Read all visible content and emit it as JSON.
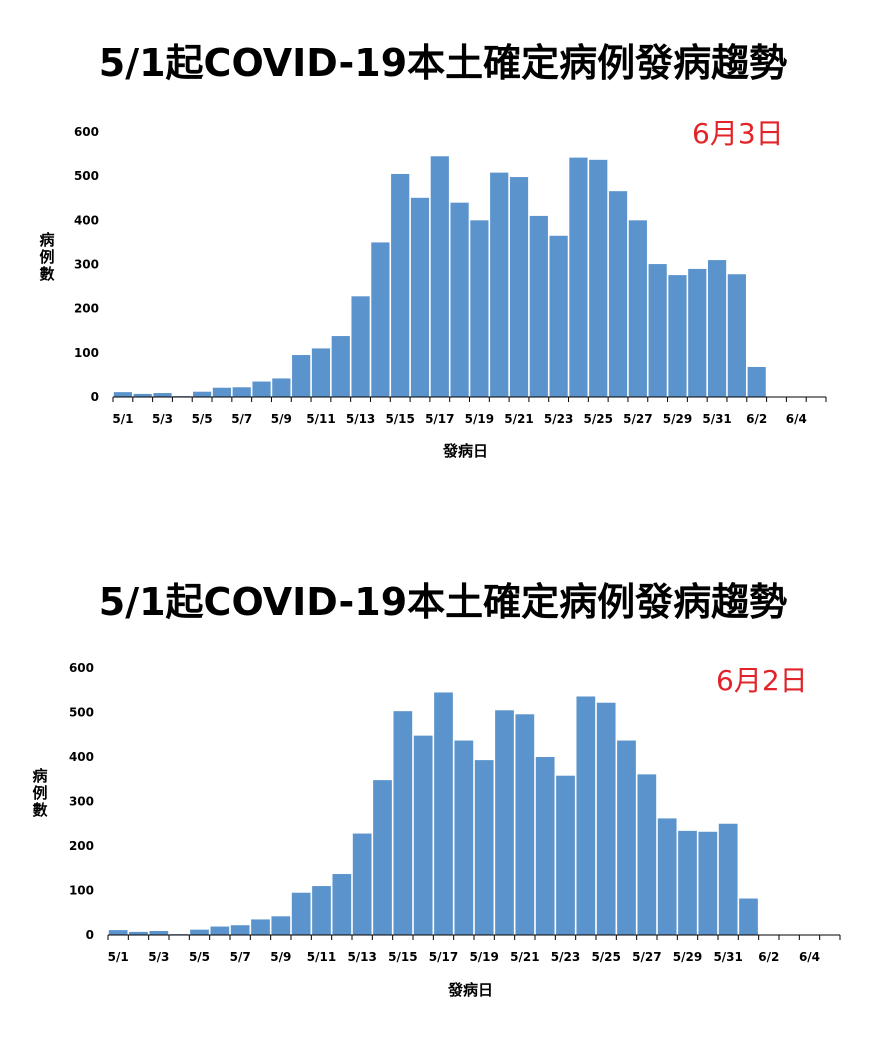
{
  "chart_data": [
    {
      "type": "bar",
      "title": "5/1起COVID-19本土確定病例發病趨勢",
      "date_label": "6月3日",
      "xlabel": "發病日",
      "ylabel": "病例數",
      "ylim": [
        0,
        600
      ],
      "yticks": [
        0,
        100,
        200,
        300,
        400,
        500,
        600
      ],
      "xtick_labels": [
        "5/1",
        "5/3",
        "5/5",
        "5/7",
        "5/9",
        "5/11",
        "5/13",
        "5/15",
        "5/17",
        "5/19",
        "5/21",
        "5/23",
        "5/25",
        "5/27",
        "5/29",
        "5/31",
        "6/2",
        "6/4"
      ],
      "categories": [
        "5/1",
        "5/2",
        "5/3",
        "5/4",
        "5/5",
        "5/6",
        "5/7",
        "5/8",
        "5/9",
        "5/10",
        "5/11",
        "5/12",
        "5/13",
        "5/14",
        "5/15",
        "5/16",
        "5/17",
        "5/18",
        "5/19",
        "5/20",
        "5/21",
        "5/22",
        "5/23",
        "5/24",
        "5/25",
        "5/26",
        "5/27",
        "5/28",
        "5/29",
        "5/30",
        "5/31",
        "6/1",
        "6/2",
        "6/3",
        "6/4",
        "6/5"
      ],
      "values": [
        11,
        7,
        9,
        2,
        12,
        21,
        22,
        35,
        42,
        95,
        110,
        138,
        228,
        350,
        505,
        451,
        545,
        440,
        400,
        508,
        498,
        410,
        365,
        542,
        537,
        466,
        400,
        301,
        276,
        290,
        310,
        278,
        68,
        0,
        0,
        0
      ],
      "bar_color": "#5b94cc",
      "grid": false
    },
    {
      "type": "bar",
      "title": "5/1起COVID-19本土確定病例發病趨勢",
      "date_label": "6月2日",
      "xlabel": "發病日",
      "ylabel": "病例數",
      "ylim": [
        0,
        600
      ],
      "yticks": [
        0,
        100,
        200,
        300,
        400,
        500,
        600
      ],
      "xtick_labels": [
        "5/1",
        "5/3",
        "5/5",
        "5/7",
        "5/9",
        "5/11",
        "5/13",
        "5/15",
        "5/17",
        "5/19",
        "5/21",
        "5/23",
        "5/25",
        "5/27",
        "5/29",
        "5/31",
        "6/2",
        "6/4"
      ],
      "categories": [
        "5/1",
        "5/2",
        "5/3",
        "5/4",
        "5/5",
        "5/6",
        "5/7",
        "5/8",
        "5/9",
        "5/10",
        "5/11",
        "5/12",
        "5/13",
        "5/14",
        "5/15",
        "5/16",
        "5/17",
        "5/18",
        "5/19",
        "5/20",
        "5/21",
        "5/22",
        "5/23",
        "5/24",
        "5/25",
        "5/26",
        "5/27",
        "5/28",
        "5/29",
        "5/30",
        "5/31",
        "6/1",
        "6/2",
        "6/3",
        "6/4",
        "6/5"
      ],
      "values": [
        11,
        7,
        9,
        2,
        12,
        19,
        22,
        35,
        42,
        95,
        110,
        137,
        228,
        348,
        503,
        448,
        545,
        437,
        393,
        505,
        496,
        400,
        358,
        536,
        522,
        437,
        361,
        262,
        234,
        232,
        250,
        82,
        0,
        0,
        0,
        0
      ],
      "bar_color": "#5b94cc",
      "grid": false
    }
  ]
}
